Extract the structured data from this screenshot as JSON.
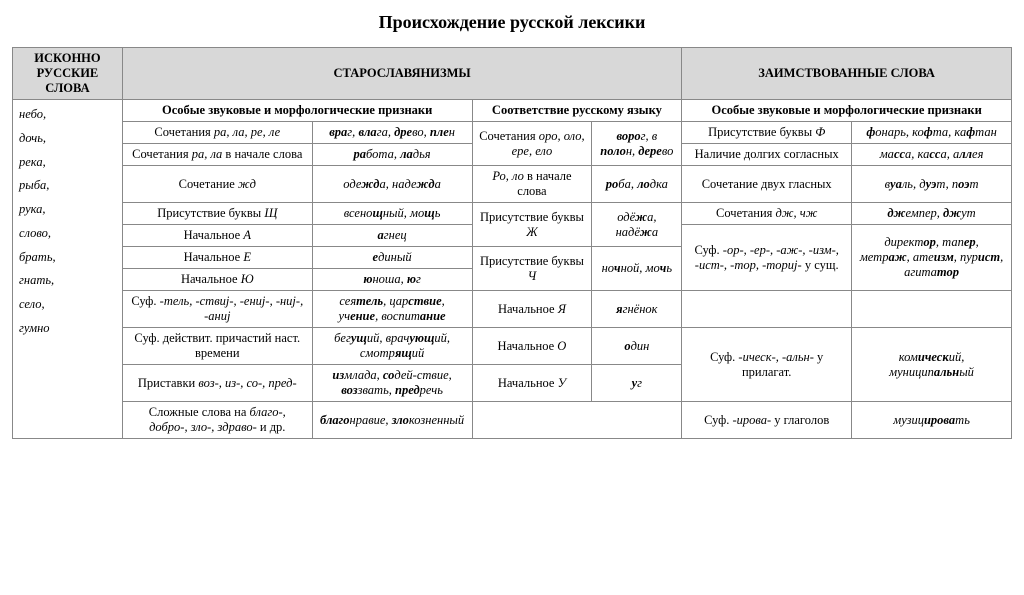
{
  "title": "Происхождение русской лексики",
  "headers": {
    "col1": "ИСКОННО РУССКИЕ СЛОВА",
    "col2": "СТАРОСЛАВЯНИЗМЫ",
    "col3": "ЗАИМСТВОВАННЫЕ СЛОВА",
    "sub_a": "Особые звуковые и морфологические признаки",
    "sub_b": "Соответствие русскому языку",
    "sub_c": "Особые звуковые и морфологические признаки"
  },
  "native_words": "небо,\nдочь,\nрека,\nрыба,\nрука,\nслово,\nбрать,\nгнать,\nсело,\nгумно",
  "rows": {
    "r1": {
      "a_feat": "Сочетания <em>ра, ла, ре, ле</em>",
      "a_ex": "<b>вра</b>г, <b>вла</b>га, <b>дре</b>во, <b>пле</b>н",
      "b_feat": "Сочетания <em>оро, оло, ере, ело</em>",
      "b_ex": "<b>воро</b>г, в <b>поло</b>н, <b>дере</b>во",
      "c_feat": "Присутствие буквы <em>Ф</em>",
      "c_ex": "<b>ф</b>онарь, ко<b>ф</b>та, ка<b>ф</b>тан"
    },
    "r2": {
      "a_feat": "Сочетания <em>ра, ла</em> в начале слова",
      "a_ex": "<b>ра</b>бота, <b>ла</b>дья",
      "c_feat": "Наличие долгих согласных",
      "c_ex": "ма<b>сс</b>а, ка<b>сс</b>а, а<b>лл</b>ея"
    },
    "r3": {
      "a_feat": "Сочетание <em>жд</em>",
      "a_ex": "оде<b>жд</b>а, наде<b>жд</b>а",
      "b_feat": "<em>Ро, ло</em> в начале слова",
      "b_ex": "<b>ро</b>ба, <b>ло</b>дка",
      "c_feat": "Сочетание двух гласных",
      "c_ex": "в<b>уа</b>ль, д<b>уэ</b>т, п<b>оэ</b>т"
    },
    "r4": {
      "a_feat": "Присутствие буквы <em>Щ</em>",
      "a_ex": "всено<b>щ</b>ный, мо<b>щ</b>ь",
      "b_feat": "Присутствие буквы <em>Ж</em>",
      "b_ex": "одё<b>ж</b>а, надё<b>ж</b>а",
      "c_feat": "Сочетания <em>дж, чж</em>",
      "c_ex": "<b>дж</b>емпер, <b>дж</b>ут"
    },
    "r5": {
      "a_feat": "Начальное <em>А</em>",
      "a_ex": "<b>а</b>гнец",
      "c_feat": "Суф. <em>-ор-, -ер-, -аж-, -изм-, -ист-, -тор, -ториj-</em> у сущ.",
      "c_ex": "директ<b>ор</b>, тап<b>ер</b>, метр<b>аж</b>, ате<b>изм</b>, пур<b>ист</b>, агита<b>тор</b>"
    },
    "r6": {
      "a_feat": "Начальное <em>Е</em>",
      "a_ex": "<b>е</b>диный",
      "b_feat": "Присутствие буквы <em>Ч</em>",
      "b_ex": "но<b>ч</b>ной, мо<b>ч</b>ь"
    },
    "r7": {
      "a_feat": "Начальное <em>Ю</em>",
      "a_ex": "<b>ю</b>ноша, <b>ю</b>г"
    },
    "r8": {
      "a_feat": "Суф. <em>-тель, -ствиj-, -ениj-, -ниj-, -аниj</em>",
      "a_ex": "сея<b>тель</b>, цар<b>ствие</b>, уч<b>ение</b>, воспит<b>ание</b>",
      "b_feat": "Начальное <em>Я</em>",
      "b_ex": "<b>я</b>гнёнок"
    },
    "r9": {
      "a_feat": "Суф. действит. причастий наст. времени",
      "a_ex": "бег<b>ущ</b>ий, врач<b>ующ</b>ий, смотр<b>ящ</b>ий",
      "b_feat": "Начальное <em>О</em>",
      "b_ex": "<b>о</b>дин",
      "c_feat": "Суф. <em>-ическ-, -альн-</em> у прилагат.",
      "c_ex": "ком<b>ическ</b>ий, муницип<b>альн</b>ый"
    },
    "r10": {
      "a_feat": "Приставки <em>воз-, из-, со-, пред-</em>",
      "a_ex": "<b>из</b>млада, <b>со</b>дей-ствие, <b>воз</b>звать, <b>пред</b>речь",
      "b_feat": "Начальное <em>У</em>",
      "b_ex": "<b>у</b>г"
    },
    "r11": {
      "a_feat": "Сложные слова на <em>благо-, добро-, зло-, здраво-</em> и др.",
      "a_ex": "<b>благо</b>нравие, <b>зло</b>козненный",
      "c_feat": "Суф. <em>-ирова-</em> у глаголов",
      "c_ex": "музиц<b>ирова</b>ть"
    }
  }
}
